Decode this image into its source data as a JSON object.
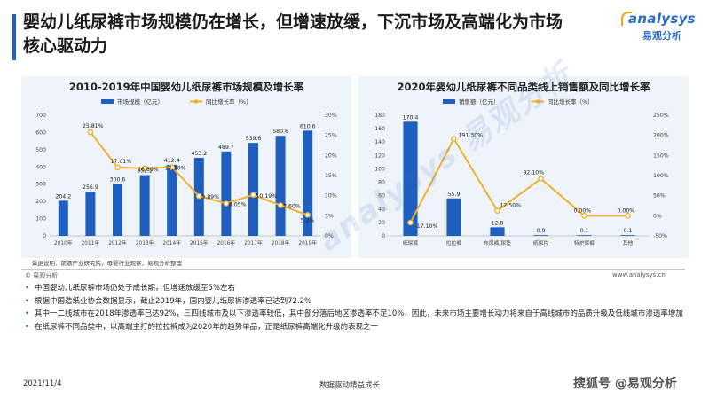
{
  "header": {
    "title": "婴幼儿纸尿裤市场规模仍在增长，但增速放缓，下沉市场及高端化为市场核心驱动力",
    "logo_main": "analysys",
    "logo_sub": "易观分析"
  },
  "colors": {
    "bar": "#1f5fbf",
    "line": "#f0b030",
    "bg_panel": "#eef4fa"
  },
  "chart_data": [
    {
      "type": "bar",
      "title": "2010-2019年中国婴幼儿纸尿裤市场规模及增长率",
      "categories": [
        "2010年",
        "2011年",
        "2012年",
        "2013年",
        "2014年",
        "2015年",
        "2016年",
        "2017年",
        "2018年",
        "2019年"
      ],
      "series": [
        {
          "name": "市场规模（亿元）",
          "type": "bar",
          "axis": "left",
          "values": [
            204.2,
            256.9,
            300.6,
            352.2,
            412.4,
            453.2,
            489.7,
            539.6,
            580.6,
            610.6
          ],
          "labels": [
            "204.2",
            "256.9",
            "300.6",
            "352.2",
            "412.4",
            "453.2",
            "489.7",
            "539.6",
            "580.6",
            "610.6"
          ]
        },
        {
          "name": "同比增长率（%）",
          "type": "line",
          "axis": "right",
          "values": [
            null,
            25.81,
            17.01,
            16.8,
            17.1,
            9.89,
            8.05,
            10.19,
            7.6,
            5.2
          ],
          "labels": [
            "",
            "25.81%",
            "17.01%",
            "16.80%",
            "17.10%",
            "9.89%",
            "8.05%",
            "10.19%",
            "7.60%",
            "5.2%"
          ]
        }
      ],
      "y_left": {
        "min": 0,
        "max": 700,
        "ticks": [
          "0",
          "100",
          "200",
          "300",
          "400",
          "500",
          "600",
          "700"
        ]
      },
      "y_right": {
        "min": 0,
        "max": 30,
        "ticks": [
          "0%",
          "5%",
          "10%",
          "15%",
          "20%",
          "25%",
          "30%"
        ]
      },
      "legend": "top"
    },
    {
      "type": "bar",
      "title": "2020年婴幼儿纸尿裤不同品类线上销售额及同比增长率",
      "categories": [
        "纸尿裤",
        "拉拉裤",
        "布尿裤/尿垫",
        "纸尿片",
        "特护尿裤",
        "其他"
      ],
      "series": [
        {
          "name": "销售额（亿元）",
          "type": "bar",
          "axis": "left",
          "values": [
            170.4,
            55.9,
            12.8,
            0.9,
            0.1,
            0.1
          ],
          "labels": [
            "170.4",
            "55.9",
            "12.8",
            "0.9",
            "0.1",
            "0.1"
          ]
        },
        {
          "name": "同比增长率（%）",
          "type": "line",
          "axis": "right",
          "values": [
            -17.1,
            191.3,
            12.5,
            92.1,
            0.0,
            0.0
          ],
          "labels": [
            "-17.10%",
            "191.30%",
            "12.50%",
            "92.10%",
            "0.00%",
            "0.00%"
          ]
        }
      ],
      "y_left": {
        "min": 0,
        "max": 180,
        "ticks": [
          "0",
          "20",
          "40",
          "60",
          "80",
          "100",
          "120",
          "140",
          "160",
          "180"
        ]
      },
      "y_right": {
        "min": -50,
        "max": 250,
        "ticks": [
          "-50%",
          "0%",
          "50%",
          "100%",
          "150%",
          "200%",
          "250%"
        ]
      },
      "legend": "top"
    }
  ],
  "source": "数据说明：前瞻产业研究院，母婴行业观察，易观分析整理",
  "brand_left": "© 易观分析",
  "brand_right": "www.analysys.cn",
  "bullets": [
    "中国婴幼儿纸尿裤市场仍处于成长期，但增速放缓至5%左右",
    "根据中国造纸业协会数据显示，截止2019年，国内婴儿纸尿裤渗透率已达到72.2%",
    "其中一二线城市在2018年渗透率已达92%，三四线城市及以下渗透率较低，其中部分落后地区渗透率不足10%，因此，未来市场主要增长动力将来自于高线城市的品质升级及低线城市渗透率增加",
    "在纸尿裤不同品类中，以高端主打的拉拉裤成为2020年的趋势单品，正是纸尿裤高端化升级的表现之一"
  ],
  "bottom": {
    "date": "2021/11/4",
    "center": "数据驱动精益成长",
    "watermark": "搜狐号 @易观分析"
  }
}
